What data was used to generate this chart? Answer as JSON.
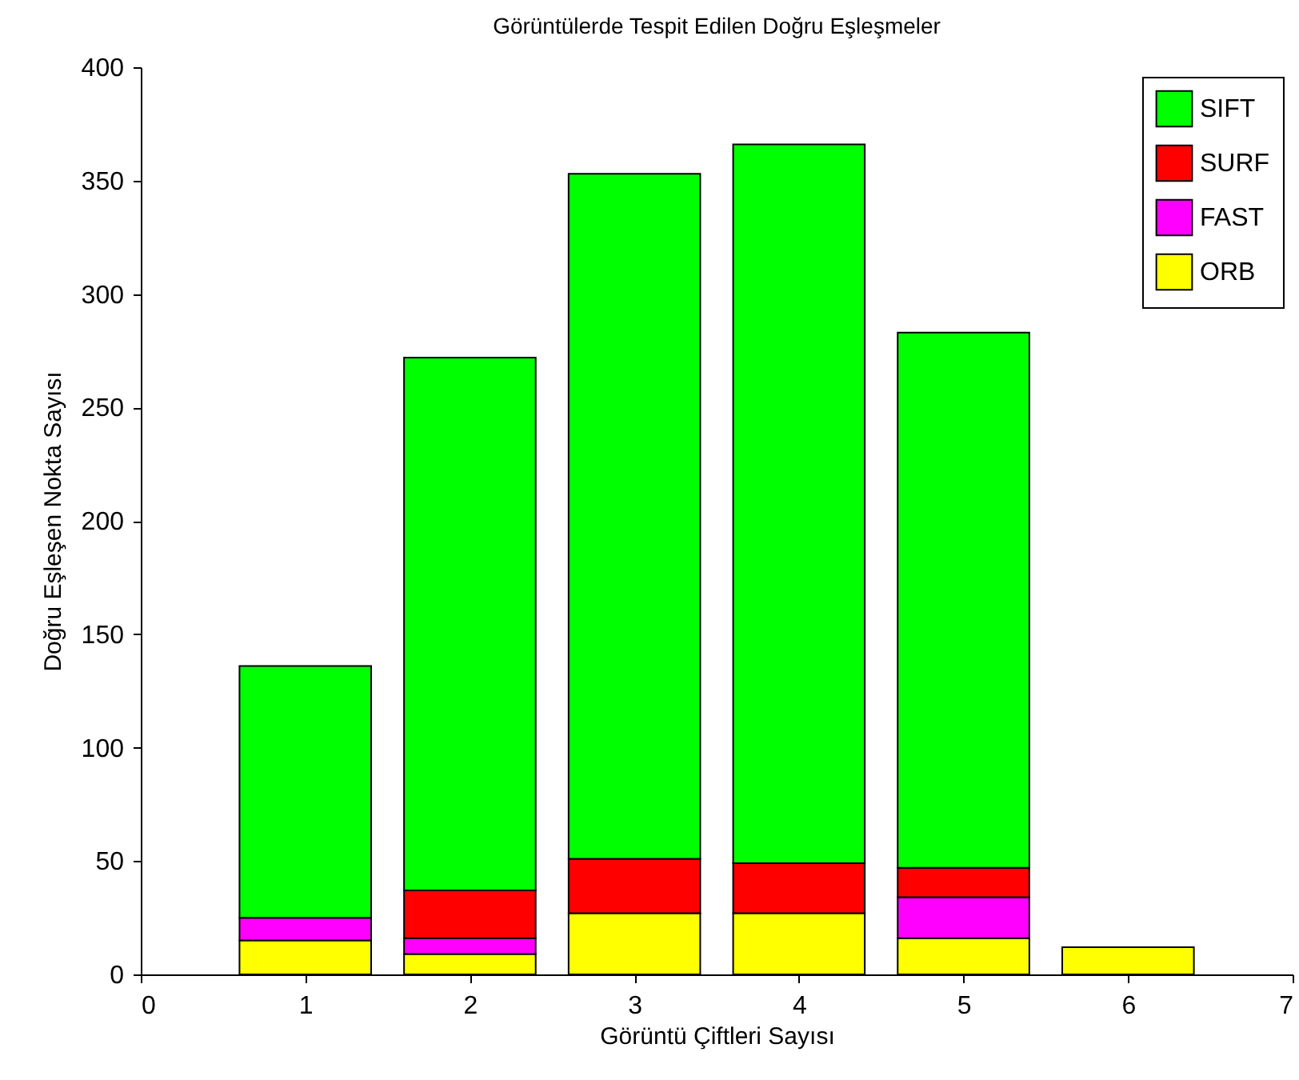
{
  "chart_data": {
    "type": "bar",
    "title": "Görüntülerde Tespit Edilen Doğru Eşleşmeler",
    "xlabel": "Görüntü Çiftleri Sayısı",
    "ylabel": "Doğru Eşleşen Nokta Sayısı",
    "x": [
      1,
      2,
      3,
      4,
      5,
      6
    ],
    "stacked": true,
    "series": [
      {
        "name": "ORB",
        "color": "#ffff00",
        "values": [
          15,
          9,
          27,
          27,
          16,
          12
        ]
      },
      {
        "name": "FAST",
        "color": "#ff00ff",
        "values": [
          10,
          7,
          null,
          null,
          18,
          null
        ]
      },
      {
        "name": "SURF",
        "color": "#ff0000",
        "values": [
          null,
          21,
          24,
          22,
          13,
          null
        ]
      },
      {
        "name": "SIFT",
        "color": "#00ff00",
        "values": [
          111,
          235,
          302,
          317,
          236,
          null
        ]
      }
    ],
    "xlim": [
      0,
      7
    ],
    "xticks": [
      0,
      1,
      2,
      3,
      4,
      5,
      6,
      7
    ],
    "ylim": [
      0,
      400
    ],
    "yticks": [
      0,
      50,
      100,
      150,
      200,
      250,
      300,
      350,
      400
    ],
    "grid": false,
    "legend": "top right"
  }
}
